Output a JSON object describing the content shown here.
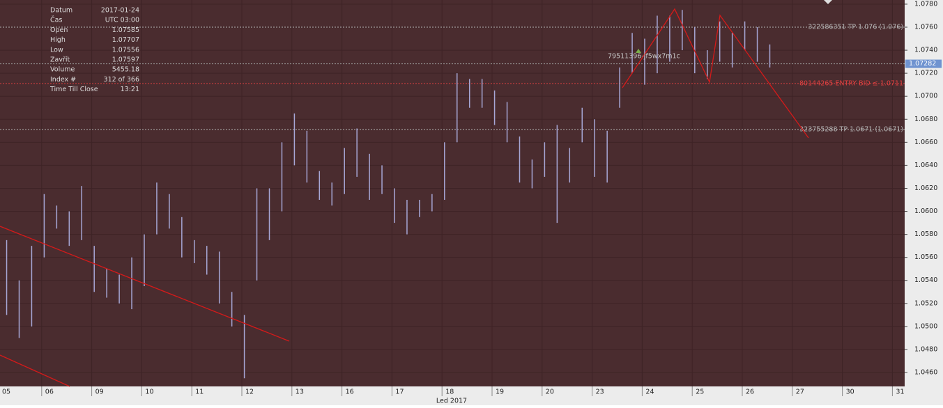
{
  "chart_data": {
    "type": "range_bars",
    "x_label": "Led 2017",
    "color": "#a7a7d6",
    "background": "#4a2c2f",
    "grid": true,
    "xlim": [
      0.167,
      18.245
    ],
    "ylim": [
      1.04479,
      1.07836
    ],
    "xticks": [
      {
        "value": 1,
        "label": "06"
      },
      {
        "value": 2,
        "label": "09"
      },
      {
        "value": 3,
        "label": "10"
      },
      {
        "value": 4,
        "label": "11"
      },
      {
        "value": 5,
        "label": "12"
      },
      {
        "value": 6,
        "label": "13"
      },
      {
        "value": 7,
        "label": "16"
      },
      {
        "value": 8,
        "label": "17"
      },
      {
        "value": 9,
        "label": "18"
      },
      {
        "value": 10,
        "label": "19"
      },
      {
        "value": 11,
        "label": "20"
      },
      {
        "value": 12,
        "label": "23"
      },
      {
        "value": 13,
        "label": "24"
      },
      {
        "value": 14,
        "label": "25"
      },
      {
        "value": 15,
        "label": "26"
      },
      {
        "value": 16,
        "label": "27"
      },
      {
        "value": 17,
        "label": "30"
      },
      {
        "value": 18,
        "label": "31"
      }
    ],
    "first_xlabel": "05",
    "yticks": [
      {
        "value": 1.046,
        "label": "1.0460"
      },
      {
        "value": 1.048,
        "label": "1.0480"
      },
      {
        "value": 1.05,
        "label": "1.0500"
      },
      {
        "value": 1.052,
        "label": "1.0520"
      },
      {
        "value": 1.054,
        "label": "1.0540"
      },
      {
        "value": 1.056,
        "label": "1.0560"
      },
      {
        "value": 1.058,
        "label": "1.0580"
      },
      {
        "value": 1.06,
        "label": "1.0600"
      },
      {
        "value": 1.062,
        "label": "1.0620"
      },
      {
        "value": 1.064,
        "label": "1.0640"
      },
      {
        "value": 1.066,
        "label": "1.0660"
      },
      {
        "value": 1.068,
        "label": "1.0680"
      },
      {
        "value": 1.07,
        "label": "1.0700"
      },
      {
        "value": 1.072,
        "label": "1.0720"
      },
      {
        "value": 1.074,
        "label": "1.0740"
      },
      {
        "value": 1.076,
        "label": "1.0760"
      },
      {
        "value": 1.078,
        "label": "1.0780"
      }
    ],
    "x": [
      0.3,
      0.55,
      0.8,
      1.05,
      1.3,
      1.55,
      1.8,
      2.05,
      2.3,
      2.55,
      2.8,
      3.05,
      3.3,
      3.55,
      3.8,
      4.05,
      4.3,
      4.55,
      4.8,
      5.05,
      5.3,
      5.55,
      5.8,
      6.05,
      6.3,
      6.55,
      6.8,
      7.05,
      7.3,
      7.55,
      7.8,
      8.05,
      8.3,
      8.55,
      8.8,
      9.05,
      9.3,
      9.55,
      9.8,
      10.05,
      10.3,
      10.55,
      10.8,
      11.05,
      11.3,
      11.55,
      11.8,
      12.05,
      12.3,
      12.55,
      12.8,
      13.05,
      13.3,
      13.55,
      13.8,
      14.05,
      14.3,
      14.55,
      14.8,
      15.05,
      15.3,
      15.55
    ],
    "low": [
      1.051,
      1.049,
      1.05,
      1.056,
      1.0585,
      1.057,
      1.0575,
      1.053,
      1.0525,
      1.052,
      1.0515,
      1.0535,
      1.058,
      1.0585,
      1.056,
      1.0555,
      1.0545,
      1.052,
      1.05,
      1.0455,
      1.054,
      1.0575,
      1.06,
      1.064,
      1.0625,
      1.061,
      1.0605,
      1.0615,
      1.063,
      1.061,
      1.0615,
      1.059,
      1.058,
      1.0595,
      1.06,
      1.061,
      1.066,
      1.069,
      1.069,
      1.0675,
      1.066,
      1.0625,
      1.062,
      1.063,
      1.059,
      1.0625,
      1.066,
      1.063,
      1.0625,
      1.069,
      1.072,
      1.071,
      1.072,
      1.073,
      1.074,
      1.072,
      1.0715,
      1.073,
      1.0725,
      1.074,
      1.073,
      1.0725
    ],
    "high": [
      1.0575,
      1.054,
      1.057,
      1.0615,
      1.0605,
      1.06,
      1.0622,
      1.057,
      1.055,
      1.0545,
      1.056,
      1.058,
      1.0625,
      1.0615,
      1.0595,
      1.0575,
      1.057,
      1.0565,
      1.053,
      1.051,
      1.062,
      1.062,
      1.066,
      1.0685,
      1.067,
      1.0635,
      1.0625,
      1.0655,
      1.0672,
      1.065,
      1.064,
      1.062,
      1.061,
      1.061,
      1.0615,
      1.066,
      1.072,
      1.0715,
      1.0715,
      1.0705,
      1.0695,
      1.0665,
      1.0645,
      1.066,
      1.0675,
      1.0655,
      1.069,
      1.068,
      1.067,
      1.0725,
      1.0755,
      1.075,
      1.077,
      1.077,
      1.0775,
      1.076,
      1.074,
      1.0765,
      1.0755,
      1.0765,
      1.076,
      1.0745
    ],
    "current_price": 1.07282,
    "levels": [
      {
        "value": 1.076,
        "label": "322586351 TP 1.076 (1.076)",
        "color": "#b5b5b5"
      },
      {
        "value": 1.0711,
        "label": "80144265 ENTRY BID ≤ 1.0711",
        "color": "#e04040"
      },
      {
        "value": 1.0671,
        "label": "323755288 TP 1.0671 (1.0671)",
        "color": "#b5b5b5"
      }
    ],
    "annotation": "79511396-jf5wx7m1c"
  },
  "info": {
    "rows": [
      [
        "Datum",
        "2017-01-24"
      ],
      [
        "Čas",
        "UTC 03:00"
      ],
      [
        "Open",
        "1.07585"
      ],
      [
        "High",
        "1.07707"
      ],
      [
        "Low",
        "1.07556"
      ],
      [
        "Zavřít",
        "1.07597"
      ],
      [
        "Volume",
        "5455.18"
      ],
      [
        "Index #",
        "312 of 366"
      ],
      [
        "Time Till Close",
        "13:21"
      ]
    ]
  }
}
